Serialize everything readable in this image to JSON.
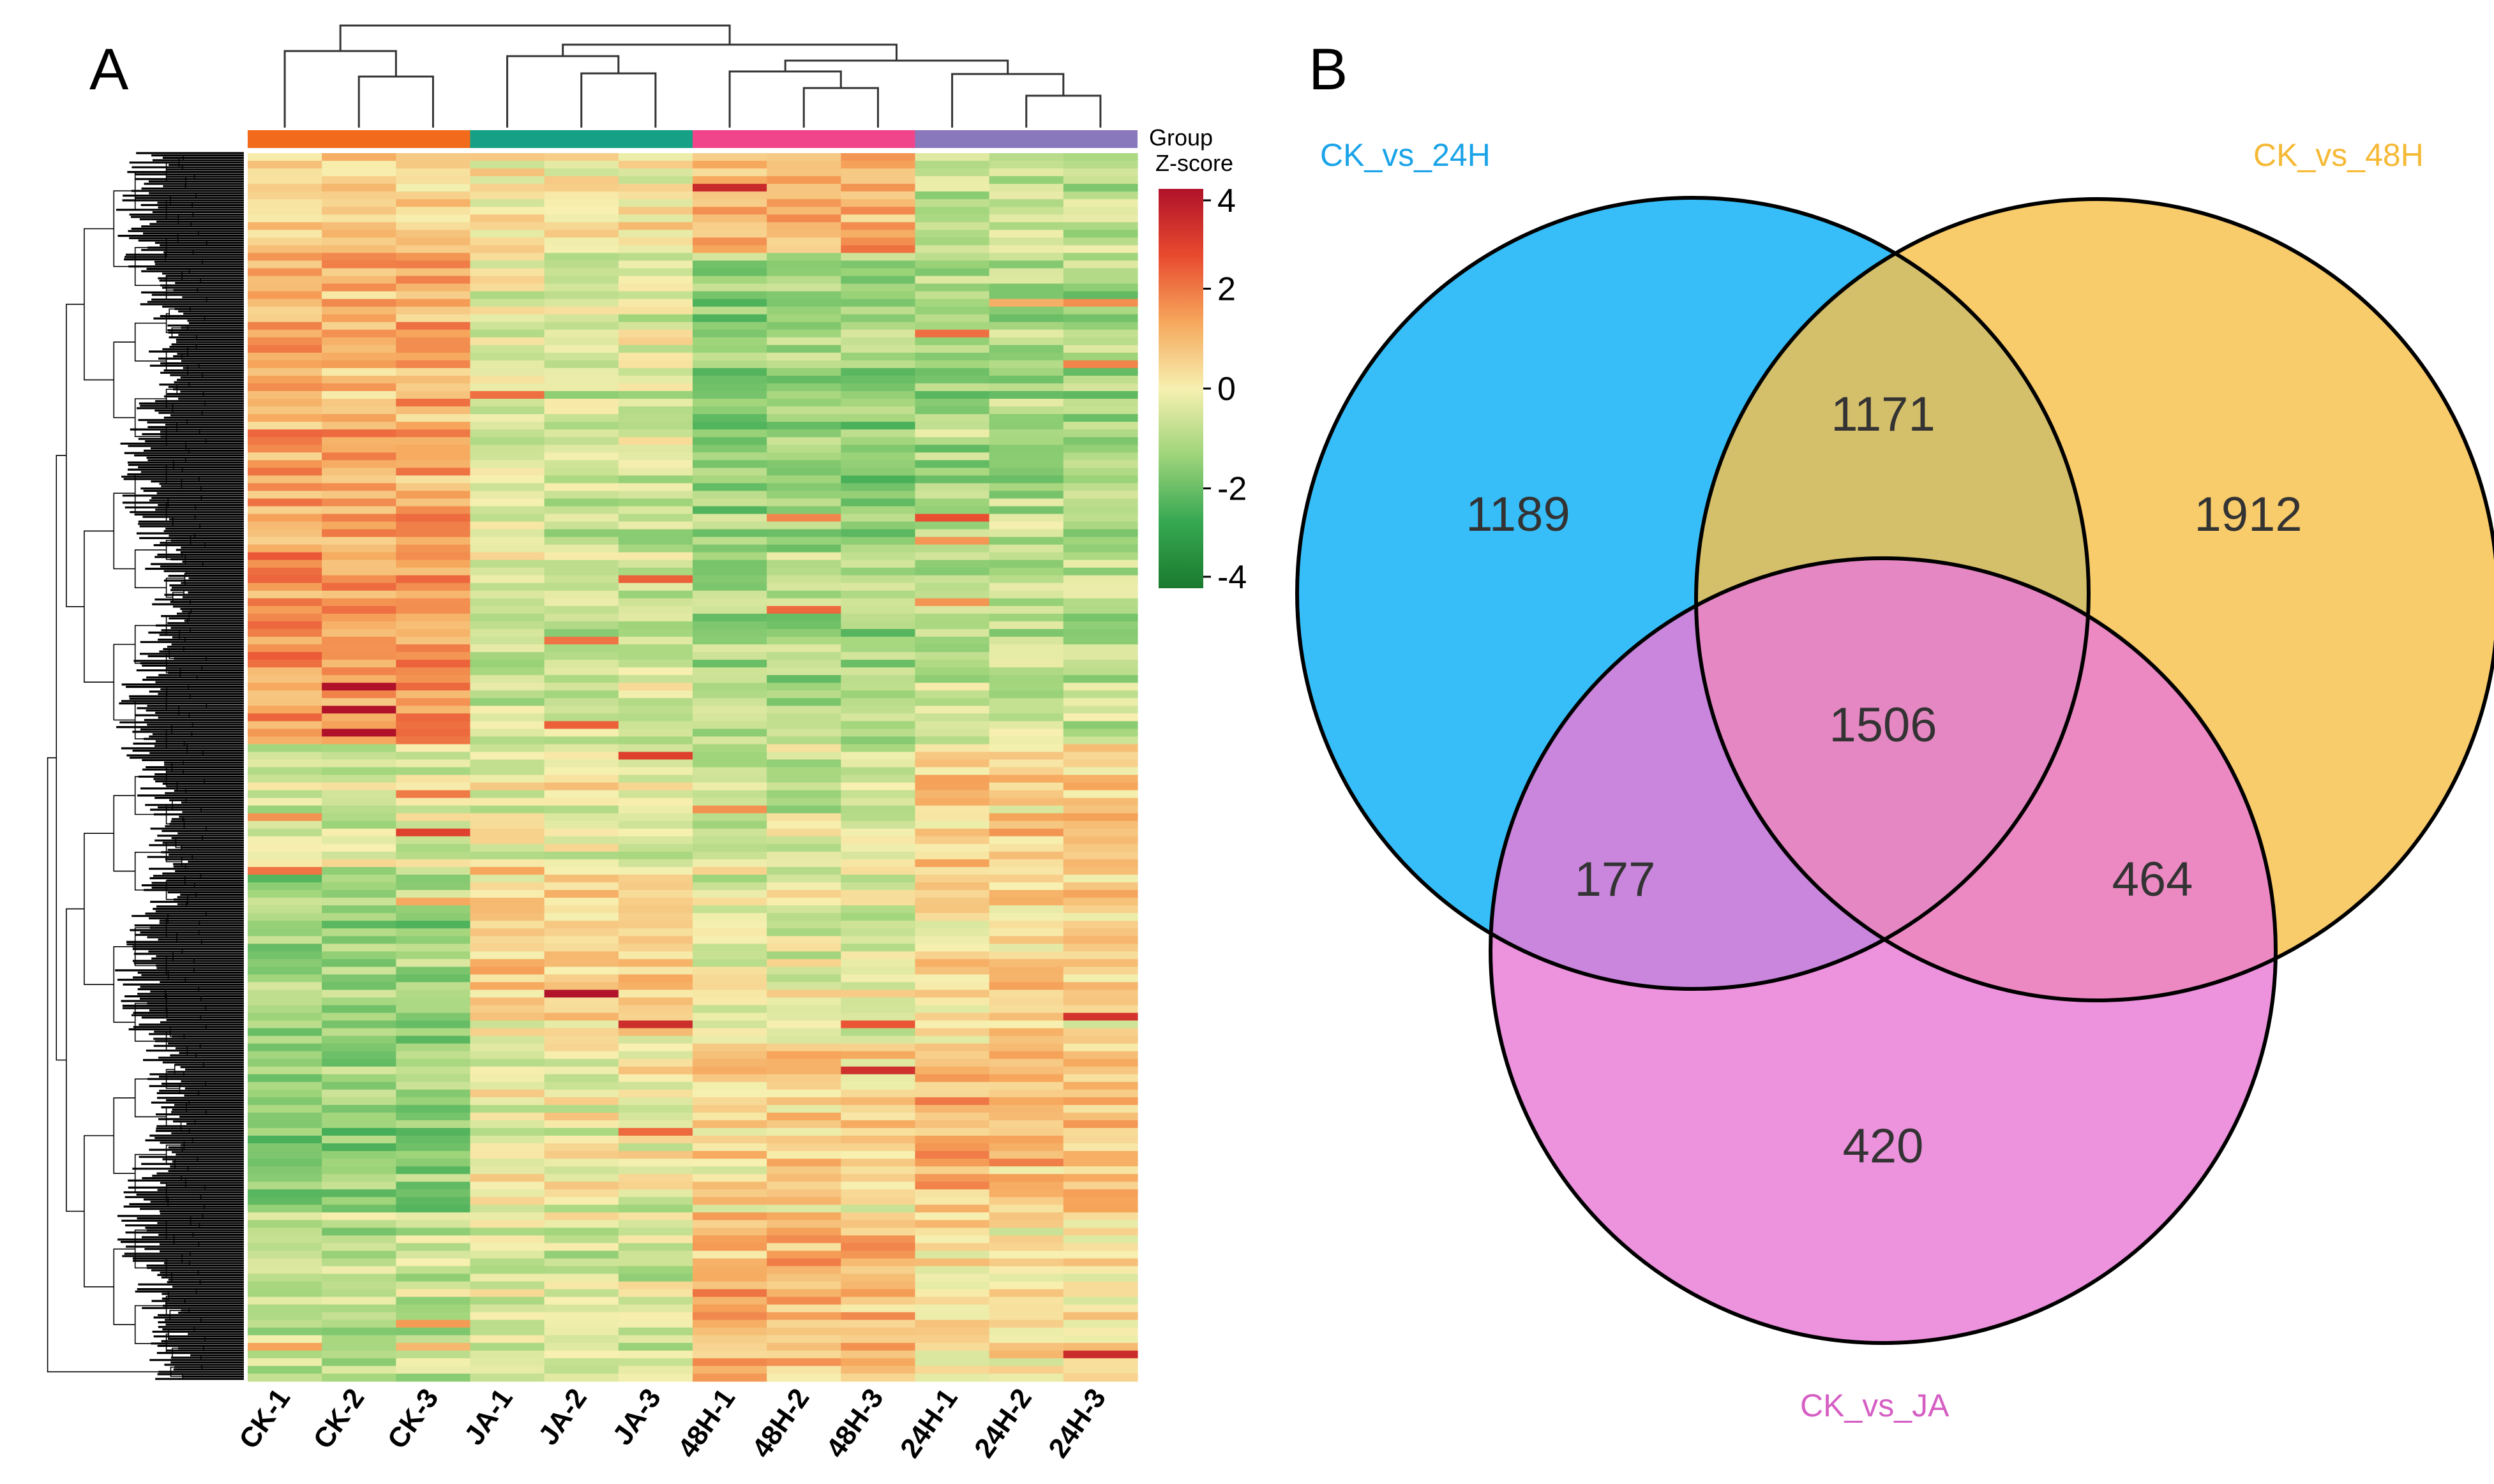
{
  "panels": {
    "a": "A",
    "b": "B"
  },
  "chart_data": [
    {
      "type": "heatmap",
      "panel": "A",
      "columns": [
        "CK-1",
        "CK-2",
        "CK-3",
        "JA-1",
        "JA-2",
        "JA-3",
        "48H-1",
        "48H-2",
        "48H-3",
        "24H-1",
        "24H-2",
        "24H-3"
      ],
      "group_annotation_label": "Group",
      "groups": [
        {
          "color": "#f26a1b",
          "columns": [
            "CK-1",
            "CK-2",
            "CK-3"
          ]
        },
        {
          "color": "#16a085",
          "columns": [
            "JA-1",
            "JA-2",
            "JA-3"
          ]
        },
        {
          "color": "#f0458a",
          "columns": [
            "48H-1",
            "48H-2",
            "48H-3"
          ]
        },
        {
          "color": "#8a78bd",
          "columns": [
            "24H-1",
            "24H-2",
            "24H-3"
          ]
        }
      ],
      "colorbar": {
        "title": "Z-score",
        "ticks": [
          "4",
          "2",
          "0",
          "-2",
          "-4"
        ],
        "range": [
          -4,
          4
        ],
        "colors": [
          "#1a7a2e",
          "#36a852",
          "#9ed47a",
          "#f7f0b0",
          "#f6a75c",
          "#e84a2f",
          "#b0122a"
        ]
      },
      "row_dendrogram": true,
      "column_dendrogram": true
    },
    {
      "type": "venn",
      "panel": "B",
      "sets": [
        {
          "name": "CK_vs_24H",
          "color": "#0bb0f7",
          "label_color": "#1aa3e8"
        },
        {
          "name": "CK_vs_48H",
          "color": "#f7c04a",
          "label_color": "#f5b935"
        },
        {
          "name": "CK_vs_JA",
          "color": "#e97ad5",
          "label_color": "#d65fc4"
        }
      ],
      "regions": {
        "only_24H": 1189,
        "only_48H": 1912,
        "only_JA": 420,
        "24H_48H": 1171,
        "24H_JA": 177,
        "48H_JA": 464,
        "all": 1506
      }
    }
  ]
}
